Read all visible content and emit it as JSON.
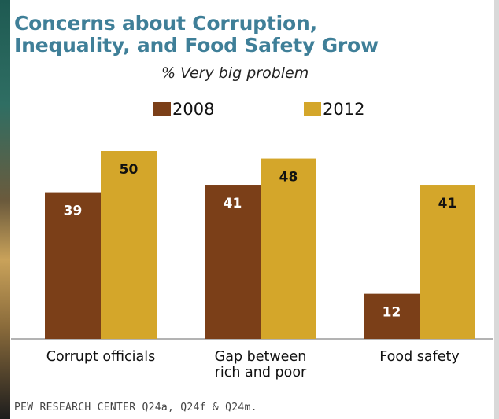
{
  "chart_data": {
    "type": "bar",
    "title_lines": [
      "Concerns about Corruption,",
      "Inequality, and Food Safety Grow"
    ],
    "subtitle": "% Very big problem",
    "categories": [
      [
        "Corrupt officials"
      ],
      [
        "Gap between",
        "rich and poor"
      ],
      [
        "Food safety"
      ]
    ],
    "series": [
      {
        "name": "2008",
        "color": "#7b3f18",
        "values": [
          39,
          41,
          12
        ]
      },
      {
        "name": "2012",
        "color": "#d4a62a",
        "values": [
          50,
          48,
          41
        ]
      }
    ],
    "ylim": [
      0,
      50
    ],
    "grid": false,
    "legend_position": "top-center"
  },
  "footnote": "PEW RESEARCH CENTER Q24a, Q24f & Q24m."
}
